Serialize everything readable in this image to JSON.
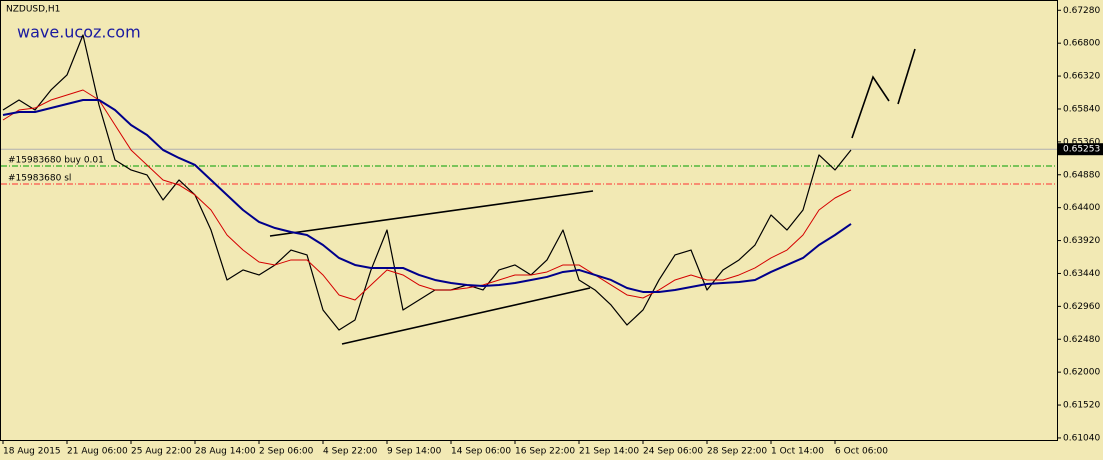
{
  "chart_data": {
    "type": "line",
    "title": "NZDUSD,H1",
    "watermark": "wave.ucoz.com",
    "categories": [
      "18 Aug 2015",
      null,
      null,
      null,
      "21 Aug 06:00",
      null,
      null,
      null,
      "25 Aug 22:00",
      null,
      null,
      null,
      "28 Aug 14:00",
      null,
      null,
      null,
      "2 Sep 06:00",
      null,
      null,
      null,
      "4 Sep 22:00",
      null,
      null,
      null,
      "9 Sep 14:00",
      null,
      null,
      null,
      "14 Sep 06:00",
      null,
      null,
      null,
      "16 Sep 22:00",
      null,
      null,
      null,
      "21 Sep 14:00",
      null,
      null,
      null,
      "24 Sep 06:00",
      null,
      null,
      null,
      "28 Sep 22:00",
      null,
      null,
      null,
      "1 Oct 14:00",
      null,
      null,
      null,
      "6 Oct 06:00",
      null
    ],
    "series": [
      {
        "color": "#000000",
        "width": 1.2,
        "values": [
          0.65825,
          0.65971,
          0.65825,
          0.66117,
          0.66336,
          0.66919,
          0.65898,
          0.65096,
          0.6495,
          0.64877,
          0.64512,
          0.64804,
          0.64585,
          0.64074,
          0.63345,
          0.63491,
          0.63418,
          0.63564,
          0.63782,
          0.6371,
          0.62907,
          0.62615,
          0.62761,
          0.63491,
          0.64074,
          0.62907,
          0.63053,
          0.63199,
          0.63199,
          0.63272,
          0.63199,
          0.63491,
          0.63564,
          0.63418,
          0.63637,
          0.64074,
          0.63345,
          0.63199,
          0.6298,
          0.62688,
          0.62907,
          0.63345,
          0.6371,
          0.63782,
          0.63199,
          0.63491,
          0.63637,
          0.63855,
          0.64293,
          0.64074,
          0.64366,
          0.65169,
          0.6495,
          0.65242
        ]
      },
      {
        "color": "#d40000",
        "width": 1,
        "values": [
          0.65679,
          0.65825,
          0.65854,
          0.65971,
          0.66044,
          0.66117,
          0.65971,
          0.65606,
          0.65242,
          0.65023,
          0.64804,
          0.64731,
          0.64585,
          0.64366,
          0.64001,
          0.63782,
          0.63607,
          0.63564,
          0.63637,
          0.63637,
          0.63418,
          0.63126,
          0.63053,
          0.63272,
          0.63491,
          0.63418,
          0.63272,
          0.63199,
          0.63199,
          0.63228,
          0.63272,
          0.63345,
          0.63418,
          0.63418,
          0.63462,
          0.63564,
          0.63564,
          0.63418,
          0.63272,
          0.63126,
          0.63082,
          0.63199,
          0.63345,
          0.63418,
          0.63345,
          0.63345,
          0.63418,
          0.6352,
          0.63666,
          0.63782,
          0.64001,
          0.64366,
          0.64541,
          0.64658
        ]
      },
      {
        "color": "#00008b",
        "width": 2,
        "values": [
          0.65752,
          0.65796,
          0.65796,
          0.65854,
          0.65913,
          0.65971,
          0.65971,
          0.65825,
          0.65606,
          0.6546,
          0.65242,
          0.65125,
          0.65023,
          0.64804,
          0.64585,
          0.64366,
          0.64191,
          0.64103,
          0.64045,
          0.64001,
          0.63855,
          0.63666,
          0.63564,
          0.6352,
          0.6352,
          0.6352,
          0.63418,
          0.63345,
          0.63301,
          0.63272,
          0.63257,
          0.63272,
          0.63301,
          0.63345,
          0.63389,
          0.63462,
          0.63491,
          0.63418,
          0.63345,
          0.63228,
          0.6317,
          0.6317,
          0.63199,
          0.63243,
          0.63286,
          0.63301,
          0.63316,
          0.63345,
          0.63462,
          0.63564,
          0.63666,
          0.63855,
          0.64001,
          0.64162
        ]
      }
    ],
    "ylim": [
      0.6101,
      0.6743
    ],
    "yticks": [
      {
        "value": 0.6728,
        "label": "0.67280"
      },
      {
        "value": 0.668,
        "label": "0.66800"
      },
      {
        "value": 0.6632,
        "label": "0.66320"
      },
      {
        "value": 0.6584,
        "label": "0.65840"
      },
      {
        "value": 0.6536,
        "label": "0.65360"
      },
      {
        "value": 0.6488,
        "label": "0.64880"
      },
      {
        "value": 0.644,
        "label": "0.64400"
      },
      {
        "value": 0.6392,
        "label": "0.63920"
      },
      {
        "value": 0.6344,
        "label": "0.63440"
      },
      {
        "value": 0.6296,
        "label": "0.62960"
      },
      {
        "value": 0.6248,
        "label": "0.62480"
      },
      {
        "value": 0.62,
        "label": "0.62000"
      },
      {
        "value": 0.6152,
        "label": "0.61520"
      },
      {
        "value": 0.6104,
        "label": "0.61040"
      }
    ],
    "last_price": 0.65253,
    "levels": [
      {
        "label": "#15983680 buy 0.01",
        "value": 0.65008,
        "color": "#00a000"
      },
      {
        "label": "#15983680 sl",
        "value": 0.64745,
        "color": "#ff3030"
      }
    ]
  }
}
